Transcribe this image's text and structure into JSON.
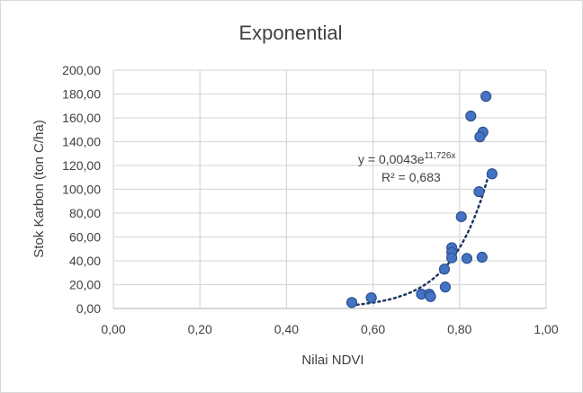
{
  "chart_data": {
    "type": "scatter",
    "title": "Exponential",
    "xlabel": "Nilai NDVI",
    "ylabel": "Stok Karbon (ton C/ha)",
    "xlim": [
      0,
      1
    ],
    "ylim": [
      0,
      200
    ],
    "x_ticks": [
      "0,00",
      "0,20",
      "0,40",
      "0,60",
      "0,80",
      "1,00"
    ],
    "y_ticks": [
      "0,00",
      "20,00",
      "40,00",
      "60,00",
      "80,00",
      "100,00",
      "120,00",
      "140,00",
      "160,00",
      "180,00",
      "200,00"
    ],
    "grid": true,
    "marker_color": "#4472c4",
    "trendline": {
      "type": "exponential",
      "a": 0.0043,
      "b": 11.726,
      "equation_prefix": "y = 0,0043e",
      "equation_exp": "11,726x",
      "r2_label": "R² = 0,683",
      "color": "#1f3864"
    },
    "points": [
      [
        0.861,
        178
      ],
      [
        0.826,
        161.5
      ],
      [
        0.854,
        148
      ],
      [
        0.847,
        144
      ],
      [
        0.875,
        113
      ],
      [
        0.845,
        98
      ],
      [
        0.804,
        77
      ],
      [
        0.782,
        51
      ],
      [
        0.782,
        47
      ],
      [
        0.782,
        42.5
      ],
      [
        0.817,
        42
      ],
      [
        0.852,
        43
      ],
      [
        0.765,
        33
      ],
      [
        0.767,
        18
      ],
      [
        0.712,
        12
      ],
      [
        0.73,
        12
      ],
      [
        0.733,
        10
      ],
      [
        0.596,
        9
      ],
      [
        0.551,
        5
      ]
    ]
  }
}
